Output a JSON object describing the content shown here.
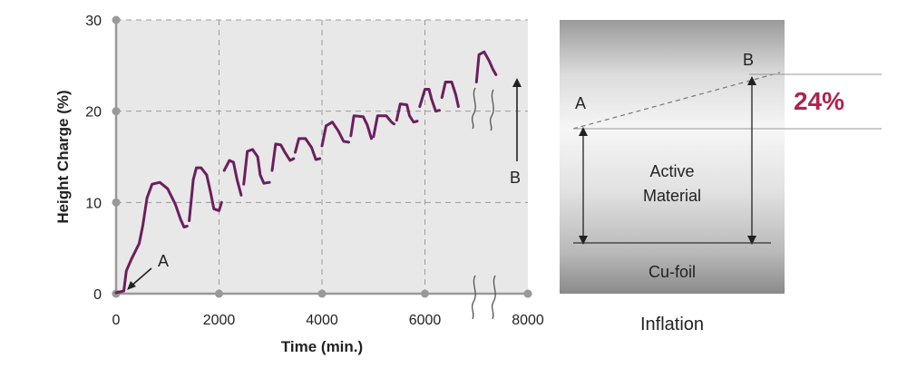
{
  "chart_data": {
    "type": "line",
    "xlabel": "Time (min.)",
    "ylabel": "Height Charge (%)",
    "xlim": [
      0,
      8000
    ],
    "ylim": [
      0,
      30
    ],
    "xticks": [
      "0",
      "2000",
      "4000",
      "6000",
      "8000"
    ],
    "yticks": [
      "0",
      "10",
      "20",
      "30"
    ],
    "grid": true,
    "series_color": "#6b1f5e",
    "segments": [
      [
        [
          0,
          0.1
        ],
        [
          150,
          0.3
        ],
        [
          200,
          2.5
        ],
        [
          300,
          3.8
        ],
        [
          450,
          5.5
        ],
        [
          520,
          7.5
        ],
        [
          600,
          10.5
        ],
        [
          700,
          12
        ],
        [
          850,
          12.2
        ],
        [
          1000,
          11.5
        ],
        [
          1150,
          9.8
        ],
        [
          1250,
          8.2
        ],
        [
          1320,
          7.3
        ],
        [
          1380,
          7.4
        ]
      ],
      [
        [
          1420,
          8
        ],
        [
          1500,
          12.5
        ],
        [
          1560,
          13.8
        ],
        [
          1650,
          13.8
        ],
        [
          1760,
          13
        ],
        [
          1840,
          11
        ],
        [
          1900,
          9.3
        ],
        [
          2000,
          9.1
        ],
        [
          2050,
          10
        ]
      ],
      [
        [
          2100,
          13.5
        ],
        [
          2200,
          14.6
        ],
        [
          2280,
          14.4
        ],
        [
          2350,
          12.5
        ],
        [
          2430,
          10.8
        ]
      ],
      [
        [
          2480,
          12
        ],
        [
          2550,
          15.6
        ],
        [
          2650,
          15.8
        ],
        [
          2750,
          15
        ],
        [
          2800,
          13
        ],
        [
          2870,
          12.1
        ],
        [
          2980,
          12.2
        ]
      ],
      [
        [
          3030,
          13.5
        ],
        [
          3100,
          16.4
        ],
        [
          3200,
          16.3
        ],
        [
          3280,
          15.5
        ],
        [
          3380,
          14.6
        ],
        [
          3450,
          14.8
        ]
      ],
      [
        [
          3480,
          15.5
        ],
        [
          3550,
          17
        ],
        [
          3680,
          17
        ],
        [
          3800,
          16
        ],
        [
          3880,
          14.7
        ],
        [
          3960,
          14.8
        ]
      ],
      [
        [
          4000,
          16.2
        ],
        [
          4080,
          18.4
        ],
        [
          4200,
          18.8
        ],
        [
          4320,
          17.8
        ],
        [
          4420,
          16.7
        ],
        [
          4520,
          16.6
        ]
      ],
      [
        [
          4560,
          17.3
        ],
        [
          4620,
          19.5
        ],
        [
          4800,
          19.4
        ],
        [
          4880,
          18.5
        ],
        [
          4960,
          17
        ]
      ],
      [
        [
          5000,
          17.2
        ],
        [
          5080,
          19.5
        ],
        [
          5250,
          19.5
        ],
        [
          5350,
          18.8
        ],
        [
          5400,
          18.6
        ]
      ],
      [
        [
          5450,
          19
        ],
        [
          5520,
          20.8
        ],
        [
          5650,
          20.7
        ],
        [
          5700,
          19.5
        ],
        [
          5780,
          18.8
        ],
        [
          5850,
          18.9
        ]
      ],
      [
        [
          5900,
          20.5
        ],
        [
          6000,
          22.4
        ],
        [
          6080,
          22.4
        ],
        [
          6130,
          21.3
        ],
        [
          6210,
          20
        ],
        [
          6280,
          20.1
        ]
      ],
      [
        [
          6330,
          21.5
        ],
        [
          6400,
          23.2
        ],
        [
          6520,
          23.2
        ],
        [
          6600,
          21.8
        ],
        [
          6650,
          20.5
        ]
      ],
      [
        [
          7000,
          23.2
        ],
        [
          7050,
          26.2
        ],
        [
          7150,
          26.5
        ],
        [
          7250,
          25.5
        ],
        [
          7320,
          24.6
        ],
        [
          7380,
          24
        ]
      ]
    ]
  },
  "annotations": {
    "point_a": "A",
    "point_b": "B"
  },
  "diagram": {
    "label_a": "A",
    "label_b": "B",
    "percent": "24%",
    "percent_color": "#b0234d",
    "material_line1": "Active",
    "material_line2": "Material",
    "foil": "Cu-foil",
    "caption": "Inflation"
  }
}
